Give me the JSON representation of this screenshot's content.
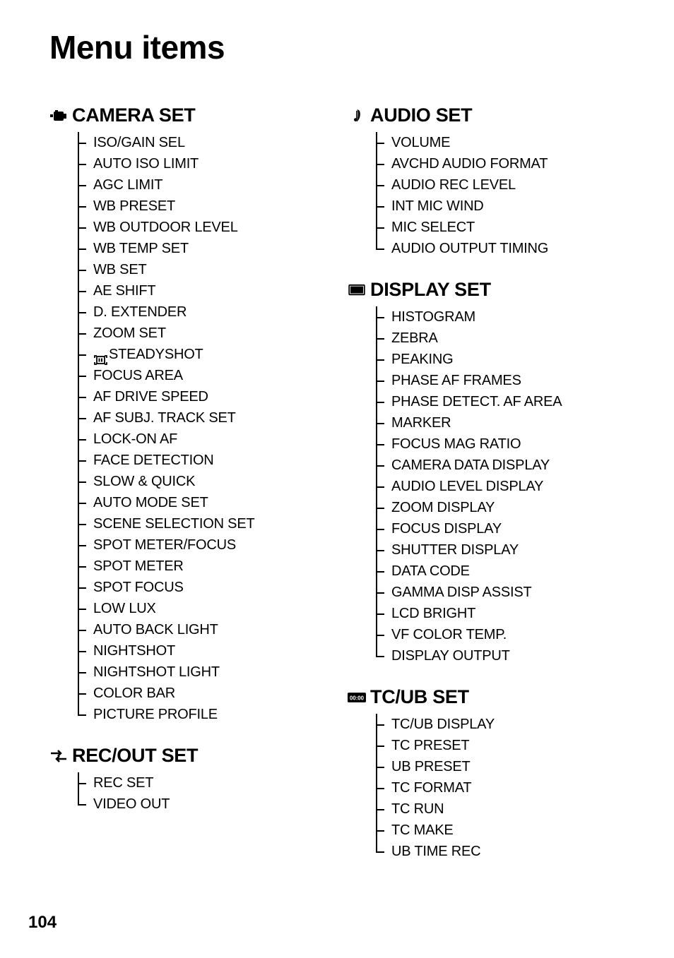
{
  "page_title": "Menu items",
  "page_number": "104",
  "left_sections": [
    {
      "icon": "camera",
      "title": "CAMERA SET",
      "items": [
        {
          "label": "ISO/GAIN SEL"
        },
        {
          "label": "AUTO ISO LIMIT"
        },
        {
          "label": "AGC LIMIT"
        },
        {
          "label": "WB PRESET"
        },
        {
          "label": "WB OUTDOOR LEVEL"
        },
        {
          "label": "WB TEMP SET"
        },
        {
          "label": "WB SET"
        },
        {
          "label": "AE SHIFT"
        },
        {
          "label": "D. EXTENDER"
        },
        {
          "label": "ZOOM SET"
        },
        {
          "label": "STEADYSHOT",
          "inline_icon": "steadyshot"
        },
        {
          "label": "FOCUS AREA"
        },
        {
          "label": "AF DRIVE SPEED"
        },
        {
          "label": "AF SUBJ. TRACK SET"
        },
        {
          "label": "LOCK-ON AF"
        },
        {
          "label": "FACE DETECTION"
        },
        {
          "label": "SLOW & QUICK"
        },
        {
          "label": "AUTO MODE SET"
        },
        {
          "label": "SCENE SELECTION SET"
        },
        {
          "label": "SPOT METER/FOCUS"
        },
        {
          "label": "SPOT METER"
        },
        {
          "label": "SPOT FOCUS"
        },
        {
          "label": "LOW LUX"
        },
        {
          "label": "AUTO BACK LIGHT"
        },
        {
          "label": "NIGHTSHOT"
        },
        {
          "label": "NIGHTSHOT LIGHT"
        },
        {
          "label": "COLOR BAR"
        },
        {
          "label": "PICTURE PROFILE"
        }
      ]
    },
    {
      "icon": "recout",
      "title": "REC/OUT SET",
      "items": [
        {
          "label": "REC SET"
        },
        {
          "label": "VIDEO OUT"
        }
      ]
    }
  ],
  "right_sections": [
    {
      "icon": "audio",
      "title": "AUDIO SET",
      "items": [
        {
          "label": "VOLUME"
        },
        {
          "label": "AVCHD AUDIO FORMAT"
        },
        {
          "label": "AUDIO REC LEVEL"
        },
        {
          "label": "INT MIC WIND"
        },
        {
          "label": "MIC SELECT"
        },
        {
          "label": "AUDIO OUTPUT TIMING"
        }
      ]
    },
    {
      "icon": "display",
      "title": "DISPLAY SET",
      "items": [
        {
          "label": "HISTOGRAM"
        },
        {
          "label": "ZEBRA"
        },
        {
          "label": "PEAKING"
        },
        {
          "label": "PHASE AF FRAMES"
        },
        {
          "label": "PHASE DETECT. AF AREA"
        },
        {
          "label": "MARKER"
        },
        {
          "label": "FOCUS MAG RATIO"
        },
        {
          "label": "CAMERA DATA DISPLAY"
        },
        {
          "label": "AUDIO LEVEL DISPLAY"
        },
        {
          "label": "ZOOM DISPLAY"
        },
        {
          "label": "FOCUS DISPLAY"
        },
        {
          "label": "SHUTTER DISPLAY"
        },
        {
          "label": "DATA CODE"
        },
        {
          "label": "GAMMA DISP ASSIST"
        },
        {
          "label": "LCD BRIGHT"
        },
        {
          "label": "VF COLOR TEMP."
        },
        {
          "label": "DISPLAY OUTPUT"
        }
      ]
    },
    {
      "icon": "tcub",
      "title": "TC/UB SET",
      "items": [
        {
          "label": "TC/UB DISPLAY"
        },
        {
          "label": "TC PRESET"
        },
        {
          "label": "UB PRESET"
        },
        {
          "label": "TC FORMAT"
        },
        {
          "label": "TC RUN"
        },
        {
          "label": "TC MAKE"
        },
        {
          "label": "UB TIME REC"
        }
      ]
    }
  ]
}
